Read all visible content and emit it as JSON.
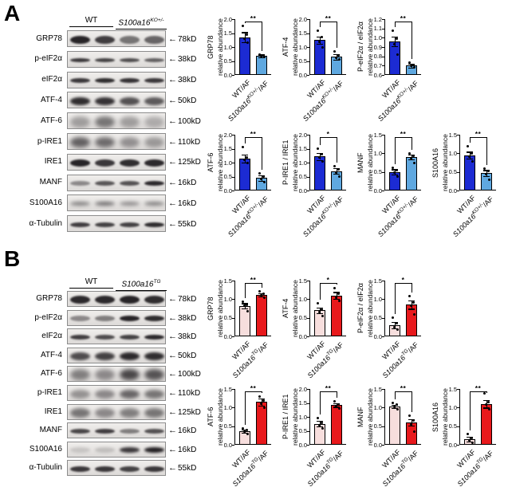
{
  "icons": {
    "left_arrow": "←"
  },
  "colors": {
    "panel_a_bar1": "#1c2bd3",
    "panel_a_bar2": "#5fa8e0",
    "panel_b_bar1": "#f7dedd",
    "panel_b_bar2": "#e8191c",
    "bar_border": "#000000",
    "band_ink": "28,25,28"
  },
  "panels": [
    {
      "id": "A",
      "letter": "A",
      "blot": {
        "group1": "WT",
        "group2": "S100a16^KO+/-",
        "rows": [
          {
            "protein": "GRP78",
            "kd": "78kD",
            "bands": [
              0.95,
              0.82,
              0.55,
              0.62
            ],
            "h": 10,
            "blur": 1
          },
          {
            "protein": "p-eIF2α",
            "kd": "38kD",
            "bands": [
              0.85,
              0.8,
              0.75,
              0.65
            ],
            "h": 5,
            "blur": 1
          },
          {
            "protein": "eIF2α",
            "kd": "38kD",
            "bands": [
              0.85,
              0.9,
              0.88,
              0.85
            ],
            "h": 6,
            "blur": 1
          },
          {
            "protein": "ATF-4",
            "kd": "50kD",
            "bands": [
              0.9,
              0.88,
              0.72,
              0.68
            ],
            "h": 10,
            "blur": 1.5
          },
          {
            "protein": "ATF-6",
            "kd": "100kD",
            "bands": [
              0.35,
              0.55,
              0.35,
              0.28
            ],
            "h": 14,
            "blur": 3
          },
          {
            "protein": "p-IRE1",
            "kd": "110kD",
            "bands": [
              0.65,
              0.6,
              0.42,
              0.38
            ],
            "h": 13,
            "blur": 3
          },
          {
            "protein": "IRE1",
            "kd": "125kD",
            "bands": [
              0.95,
              0.85,
              0.9,
              0.92
            ],
            "h": 9,
            "blur": 1
          },
          {
            "protein": "MANF",
            "kd": "16kD",
            "bands": [
              0.45,
              0.7,
              0.72,
              0.92
            ],
            "h": 6,
            "blur": 1
          },
          {
            "protein": "S100A16",
            "kd": "16kD",
            "bands": [
              0.5,
              0.6,
              0.45,
              0.5
            ],
            "h": 5,
            "blur": 2.5
          },
          {
            "protein": "α-Tubulin",
            "kd": "55kD",
            "bands": [
              0.82,
              0.8,
              0.8,
              0.9
            ],
            "h": 6,
            "blur": 1
          }
        ]
      }
    },
    {
      "id": "B",
      "letter": "B",
      "blot": {
        "group1": "WT",
        "group2": "S100a16^TG",
        "rows": [
          {
            "protein": "GRP78",
            "kd": "78kD",
            "bands": [
              0.92,
              0.92,
              0.95,
              0.9
            ],
            "h": 10,
            "blur": 1
          },
          {
            "protein": "p-eIF2α",
            "kd": "38kD",
            "bands": [
              0.45,
              0.5,
              0.95,
              0.9
            ],
            "h": 7,
            "blur": 1
          },
          {
            "protein": "eIF2α",
            "kd": "38kD",
            "bands": [
              0.82,
              0.75,
              0.8,
              0.92
            ],
            "h": 6,
            "blur": 1
          },
          {
            "protein": "ATF-4",
            "kd": "50kD",
            "bands": [
              0.75,
              0.8,
              0.92,
              0.9
            ],
            "h": 10,
            "blur": 1.5
          },
          {
            "protein": "ATF-6",
            "kd": "100kD",
            "bands": [
              0.5,
              0.45,
              0.78,
              0.72
            ],
            "h": 14,
            "blur": 3
          },
          {
            "protein": "p-IRE1",
            "kd": "110kD",
            "bands": [
              0.4,
              0.45,
              0.62,
              0.55
            ],
            "h": 11,
            "blur": 2.5
          },
          {
            "protein": "IRE1",
            "kd": "125kD",
            "bands": [
              0.55,
              0.45,
              0.5,
              0.55
            ],
            "h": 12,
            "blur": 2.5
          },
          {
            "protein": "MANF",
            "kd": "16kD",
            "bands": [
              0.78,
              0.82,
              0.5,
              0.72
            ],
            "h": 6,
            "blur": 1
          },
          {
            "protein": "S100A16",
            "kd": "16kD",
            "bands": [
              0.15,
              0.18,
              0.85,
              0.97
            ],
            "h": 7,
            "blur": 1.5
          },
          {
            "protein": "α-Tubulin",
            "kd": "55kD",
            "bands": [
              0.85,
              0.85,
              0.8,
              0.85
            ],
            "h": 7,
            "blur": 1
          }
        ]
      }
    }
  ],
  "chart_data": [
    {
      "type": "bar",
      "panel": "A",
      "row": 0,
      "col": 0,
      "title": "GRP78",
      "ylabel": "relative abundance",
      "categories": [
        "WT/AF",
        "S100a16^KO+/-^/AF"
      ],
      "values": [
        1.35,
        0.68
      ],
      "errors": [
        0.18,
        0.05
      ],
      "points": [
        [
          1.75,
          1.45,
          1.3,
          1.15
        ],
        [
          0.72,
          0.7,
          0.66,
          0.63
        ]
      ],
      "ymin": 0,
      "ymax": 2.0,
      "ystep": 0.5,
      "sig": "**"
    },
    {
      "type": "bar",
      "panel": "A",
      "row": 0,
      "col": 1,
      "title": "ATF-4",
      "ylabel": "relative abundance",
      "categories": [
        "WT/AF",
        "S100a16^KO+/-^/AF"
      ],
      "values": [
        1.25,
        0.65
      ],
      "errors": [
        0.13,
        0.1
      ],
      "points": [
        [
          1.6,
          1.35,
          1.2,
          1.0
        ],
        [
          0.85,
          0.7,
          0.62,
          0.55
        ]
      ],
      "ymin": 0,
      "ymax": 2.0,
      "ystep": 0.5,
      "sig": "**"
    },
    {
      "type": "bar",
      "panel": "A",
      "row": 0,
      "col": 2,
      "title": "P-eIF2α / eIF2α",
      "ylabel": "relative abundance",
      "categories": [
        "WT/AF",
        "S100a16^KO+/-^/AF"
      ],
      "values": [
        0.96,
        0.7
      ],
      "errors": [
        0.05,
        0.02
      ],
      "points": [
        [
          1.08,
          0.99,
          0.93,
          0.82
        ],
        [
          0.73,
          0.71,
          0.7,
          0.68
        ]
      ],
      "ymin": 0.6,
      "ymax": 1.2,
      "ystep": 0.1,
      "sig": "**"
    },
    {
      "type": "bar",
      "panel": "A",
      "row": 1,
      "col": 0,
      "title": "ATF-6",
      "ylabel": "relative abundance",
      "categories": [
        "WT/AF",
        "S100a16^KO+/-^/AF"
      ],
      "values": [
        1.15,
        0.45
      ],
      "errors": [
        0.15,
        0.1
      ],
      "points": [
        [
          1.55,
          1.2,
          1.1,
          1.0
        ],
        [
          0.62,
          0.5,
          0.42,
          0.3
        ]
      ],
      "ymin": 0,
      "ymax": 2.0,
      "ystep": 0.5,
      "sig": "**"
    },
    {
      "type": "bar",
      "panel": "A",
      "row": 1,
      "col": 1,
      "title": "P-IRE1 / IRE1",
      "ylabel": "relative abundance",
      "categories": [
        "WT/AF",
        "S100a16^KO+/-^/AF"
      ],
      "values": [
        1.22,
        0.7
      ],
      "errors": [
        0.12,
        0.1
      ],
      "points": [
        [
          1.5,
          1.3,
          1.2,
          1.05
        ],
        [
          0.88,
          0.75,
          0.65,
          0.5
        ]
      ],
      "ymin": 0,
      "ymax": 2.0,
      "ystep": 0.5,
      "sig": "*"
    },
    {
      "type": "bar",
      "panel": "A",
      "row": 1,
      "col": 2,
      "title": "MANF",
      "ylabel": "relative abundance",
      "categories": [
        "WT/AF",
        "S100a16^KO+/-^/AF"
      ],
      "values": [
        0.5,
        0.9
      ],
      "errors": [
        0.07,
        0.06
      ],
      "points": [
        [
          0.62,
          0.55,
          0.48,
          0.38
        ],
        [
          1.0,
          0.93,
          0.87,
          0.75
        ]
      ],
      "ymin": 0,
      "ymax": 1.5,
      "ystep": 0.5,
      "sig": "**"
    },
    {
      "type": "bar",
      "panel": "A",
      "row": 1,
      "col": 3,
      "title": "S100A16",
      "ylabel": "relative abundance",
      "categories": [
        "WT/AF",
        "S100a16^KO+/-^/AF"
      ],
      "values": [
        0.95,
        0.47
      ],
      "errors": [
        0.09,
        0.08
      ],
      "points": [
        [
          1.18,
          1.0,
          0.92,
          0.78
        ],
        [
          0.58,
          0.52,
          0.45,
          0.3
        ]
      ],
      "ymin": 0,
      "ymax": 1.5,
      "ystep": 0.5,
      "sig": "**"
    },
    {
      "type": "bar",
      "panel": "B",
      "row": 0,
      "col": 0,
      "title": "GRP78",
      "ylabel": "relative abundance",
      "categories": [
        "WT/AF",
        "S100a16^TG^/AF"
      ],
      "values": [
        0.82,
        1.12
      ],
      "errors": [
        0.07,
        0.04
      ],
      "points": [
        [
          0.93,
          0.85,
          0.82,
          0.68
        ],
        [
          1.22,
          1.15,
          1.1,
          1.05
        ]
      ],
      "ymin": 0,
      "ymax": 1.5,
      "ystep": 0.5,
      "sig": "**"
    },
    {
      "type": "bar",
      "panel": "B",
      "row": 0,
      "col": 1,
      "title": "ATF-4",
      "ylabel": "relative abundance",
      "categories": [
        "WT/AF",
        "S100a16^TG^/AF"
      ],
      "values": [
        0.7,
        1.1
      ],
      "errors": [
        0.08,
        0.09
      ],
      "points": [
        [
          0.88,
          0.72,
          0.65,
          0.55
        ],
        [
          1.3,
          1.15,
          1.05,
          0.95
        ]
      ],
      "ymin": 0,
      "ymax": 1.5,
      "ystep": 0.5,
      "sig": "*"
    },
    {
      "type": "bar",
      "panel": "B",
      "row": 0,
      "col": 2,
      "title": "P-eIF2α / eIF2α",
      "ylabel": "relative abundance",
      "categories": [
        "WT/AF",
        "S100a16^TG^/AF"
      ],
      "values": [
        0.3,
        0.85
      ],
      "errors": [
        0.09,
        0.11
      ],
      "points": [
        [
          0.5,
          0.35,
          0.25,
          0.18
        ],
        [
          1.08,
          0.92,
          0.82,
          0.6
        ]
      ],
      "ymin": 0,
      "ymax": 1.5,
      "ystep": 0.5,
      "sig": "*"
    },
    {
      "type": "bar",
      "panel": "B",
      "row": 1,
      "col": 0,
      "title": "ATF-6",
      "ylabel": "relative abundance",
      "categories": [
        "WT/AF",
        "S100a16^TG^/AF"
      ],
      "values": [
        0.37,
        1.15
      ],
      "errors": [
        0.04,
        0.09
      ],
      "points": [
        [
          0.45,
          0.4,
          0.35,
          0.3
        ],
        [
          1.3,
          1.2,
          1.1,
          1.0
        ]
      ],
      "ymin": 0,
      "ymax": 1.5,
      "ystep": 0.5,
      "sig": "**"
    },
    {
      "type": "bar",
      "panel": "B",
      "row": 1,
      "col": 1,
      "title": "P-IRE1 / IRE1",
      "ylabel": "relative abundance",
      "categories": [
        "WT/AF",
        "S100a16^TG^/AF"
      ],
      "values": [
        0.75,
        1.43
      ],
      "errors": [
        0.1,
        0.07
      ],
      "points": [
        [
          0.95,
          0.8,
          0.7,
          0.6
        ],
        [
          1.55,
          1.45,
          1.4,
          1.3
        ]
      ],
      "ymin": 0,
      "ymax": 2.0,
      "ystep": 0.5,
      "sig": "**"
    },
    {
      "type": "bar",
      "panel": "B",
      "row": 1,
      "col": 2,
      "title": "MANF",
      "ylabel": "relative abundance",
      "categories": [
        "WT/AF",
        "S100a16^TG^/AF"
      ],
      "values": [
        1.03,
        0.6
      ],
      "errors": [
        0.04,
        0.09
      ],
      "points": [
        [
          1.12,
          1.08,
          1.02,
          0.95
        ],
        [
          0.78,
          0.65,
          0.55,
          0.35
        ]
      ],
      "ymin": 0,
      "ymax": 1.5,
      "ystep": 0.5,
      "sig": "**"
    },
    {
      "type": "bar",
      "panel": "B",
      "row": 1,
      "col": 3,
      "title": "S100A16",
      "ylabel": "relative abundance",
      "categories": [
        "WT/AF",
        "S100a16^TG^/AF"
      ],
      "values": [
        0.15,
        1.1
      ],
      "errors": [
        0.06,
        0.1
      ],
      "points": [
        [
          0.28,
          0.18,
          0.12,
          0.05
        ],
        [
          1.38,
          1.15,
          1.08,
          0.95
        ]
      ],
      "ymin": 0,
      "ymax": 1.5,
      "ystep": 0.5,
      "sig": "**"
    }
  ]
}
